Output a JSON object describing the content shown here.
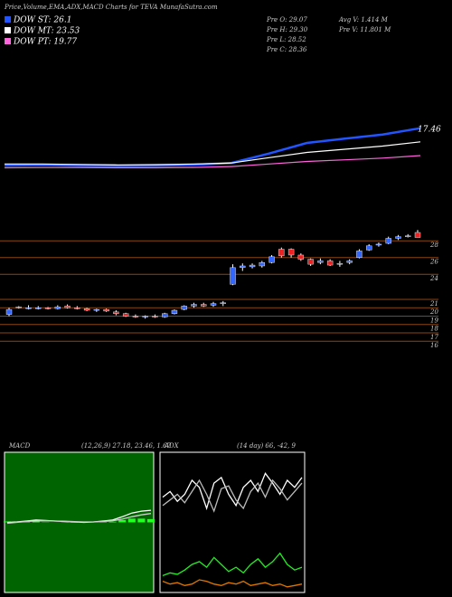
{
  "header": {
    "title": "Price,Volume,EMA,ADX,MACD Charts for TEVA MunafaSutra.com",
    "stats": [
      "Pre  O: 29.07",
      "Pre  H: 29.30",
      "Pre  L: 28.52",
      "Pre  C: 28.36",
      "Avg V: 1.414  M",
      "Pre  V: 11.801 M"
    ]
  },
  "chart_data": [
    {
      "type": "line",
      "annotations": [
        "17.46"
      ],
      "ylim": [
        15,
        21
      ],
      "series": [
        {
          "name": "DOW ST: 26.1",
          "color": "#2255ff",
          "values": [
            15.73,
            15.75,
            15.72,
            15.7,
            15.72,
            15.76,
            15.85,
            16.3,
            16.8,
            17.0,
            17.2,
            17.5
          ]
        },
        {
          "name": "DOW MT: 23.53",
          "color": "#ffffff",
          "values": [
            15.8,
            15.8,
            15.78,
            15.76,
            15.77,
            15.8,
            15.85,
            16.1,
            16.35,
            16.5,
            16.65,
            16.85
          ]
        },
        {
          "name": "DOW PT: 19.77",
          "color": "#ff66dd",
          "values": [
            15.62,
            15.63,
            15.63,
            15.62,
            15.62,
            15.64,
            15.68,
            15.8,
            15.92,
            16.0,
            16.08,
            16.2
          ]
        }
      ]
    },
    {
      "type": "candlestick",
      "ylim": [
        15.7,
        33
      ],
      "yticks": [
        28,
        26,
        24,
        21,
        20,
        19,
        18,
        17,
        16
      ],
      "up_color": "#3366ff",
      "down_color": "#ee2222",
      "open": [
        19.2,
        20.1,
        20.0,
        20.0,
        20.0,
        19.9,
        20.2,
        20.0,
        19.9,
        19.7,
        19.8,
        19.5,
        19.3,
        19.0,
        18.9,
        19.0,
        18.9,
        19.3,
        19.8,
        20.2,
        20.4,
        20.3,
        20.5,
        22.8,
        24.8,
        24.9,
        25.0,
        25.4,
        27.0,
        27.0,
        26.3,
        25.8,
        25.4,
        25.6,
        25.2,
        25.4,
        26.0,
        26.9,
        27.5,
        27.7,
        28.3,
        28.5,
        29.0
      ],
      "high": [
        20.0,
        20.2,
        20.3,
        20.2,
        20.1,
        20.3,
        20.4,
        20.2,
        20.0,
        19.9,
        19.9,
        19.7,
        19.4,
        19.2,
        19.1,
        19.2,
        19.4,
        19.8,
        20.3,
        20.6,
        20.6,
        20.7,
        20.8,
        25.2,
        25.3,
        25.3,
        25.6,
        26.3,
        27.2,
        27.1,
        26.5,
        25.9,
        25.9,
        25.8,
        25.6,
        25.8,
        27.0,
        27.6,
        27.8,
        28.5,
        28.7,
        28.8,
        29.3
      ],
      "low": [
        19.0,
        19.9,
        19.8,
        19.8,
        19.8,
        19.8,
        19.9,
        19.8,
        19.6,
        19.5,
        19.5,
        19.1,
        18.9,
        18.8,
        18.7,
        18.8,
        18.8,
        19.2,
        19.7,
        20.0,
        20.1,
        20.1,
        20.2,
        22.7,
        24.4,
        24.7,
        24.8,
        25.3,
        26.0,
        26.0,
        25.6,
        25.0,
        25.2,
        25.0,
        24.9,
        25.2,
        25.9,
        26.8,
        27.3,
        27.6,
        28.1,
        28.4,
        28.5
      ],
      "close": [
        19.8,
        20.0,
        20.0,
        20.0,
        19.9,
        20.1,
        20.0,
        19.9,
        19.7,
        19.8,
        19.6,
        19.3,
        19.0,
        18.9,
        19.0,
        18.9,
        19.3,
        19.7,
        20.2,
        20.4,
        20.2,
        20.5,
        20.6,
        24.8,
        25.0,
        25.1,
        25.4,
        26.1,
        26.2,
        26.3,
        25.8,
        25.2,
        25.6,
        25.1,
        25.3,
        25.6,
        26.8,
        27.4,
        27.6,
        28.3,
        28.5,
        28.6,
        28.4
      ]
    },
    {
      "type": "macd",
      "title": "MACD",
      "subtitle": "(12,26,9) 27.18, 23.46, 1.67",
      "ylim": [
        -15,
        15
      ],
      "background": "#006400",
      "lines": [
        {
          "color": "#ffffff",
          "values": [
            0,
            0.1,
            0.3,
            0.5,
            0.4,
            0.3,
            0.2,
            0.1,
            0,
            0.1,
            0.3,
            0.5,
            1.2,
            2.0,
            2.4,
            2.6
          ]
        },
        {
          "color": "#cccccc",
          "values": [
            -0.2,
            0,
            0.2,
            0.3,
            0.35,
            0.3,
            0.25,
            0.15,
            0.1,
            0.1,
            0.2,
            0.35,
            0.7,
            1.2,
            1.6,
            1.9
          ]
        }
      ],
      "histogram": {
        "color": "#22ff22",
        "values": [
          0.2,
          0.1,
          0.1,
          0.2,
          0.05,
          0,
          -0.05,
          -0.05,
          -0.1,
          0,
          0.1,
          0.15,
          0.5,
          0.8,
          0.8,
          0.7
        ]
      }
    },
    {
      "type": "adx",
      "title": "ADX",
      "subtitle": "(14 day) 66, -42, 9",
      "ylim": [
        0,
        100
      ],
      "background": "#000000",
      "lines": [
        {
          "color": "#ffffff",
          "values": [
            68,
            72,
            65,
            70,
            80,
            75,
            60,
            78,
            82,
            70,
            62,
            75,
            80,
            72,
            85,
            78,
            70,
            80,
            75,
            82
          ]
        },
        {
          "color": "#bbbbbb",
          "values": [
            62,
            66,
            70,
            64,
            72,
            80,
            70,
            58,
            74,
            76,
            66,
            60,
            72,
            78,
            68,
            80,
            74,
            66,
            72,
            78
          ]
        },
        {
          "color": "#22ee22",
          "values": [
            12,
            14,
            13,
            16,
            20,
            22,
            18,
            25,
            20,
            15,
            18,
            14,
            20,
            24,
            18,
            22,
            28,
            20,
            16,
            18
          ]
        },
        {
          "color": "#dd7700",
          "values": [
            8,
            6,
            7,
            5,
            6,
            9,
            8,
            6,
            5,
            7,
            6,
            8,
            5,
            6,
            7,
            5,
            6,
            4,
            5,
            6
          ]
        }
      ]
    }
  ]
}
